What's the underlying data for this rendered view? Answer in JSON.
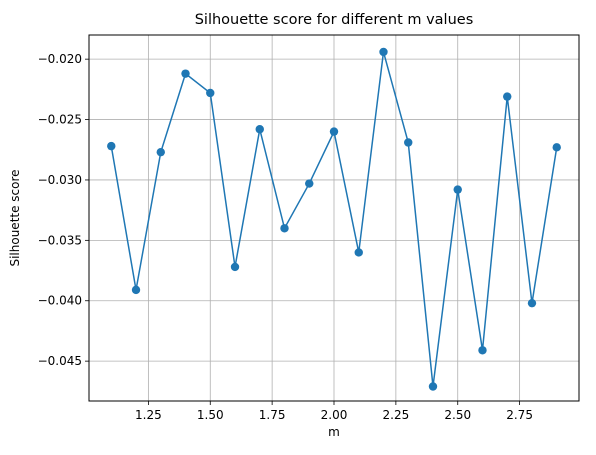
{
  "chart_data": {
    "type": "line",
    "title": "Silhouette score for different m values",
    "xlabel": "m",
    "ylabel": "Silhouette score",
    "x": [
      1.1,
      1.2,
      1.3,
      1.4,
      1.5,
      1.6,
      1.7,
      1.8,
      1.9,
      2.0,
      2.1,
      2.2,
      2.3,
      2.4,
      2.5,
      2.6,
      2.7,
      2.8,
      2.9
    ],
    "series": [
      {
        "values": [
          -0.0272,
          -0.0391,
          -0.0277,
          -0.0212,
          -0.0228,
          -0.0372,
          -0.0258,
          -0.034,
          -0.0303,
          -0.026,
          -0.036,
          -0.0194,
          -0.0269,
          -0.0471,
          -0.0308,
          -0.0441,
          -0.0231,
          -0.0402,
          -0.0273
        ],
        "color": "#1f77b4",
        "marker": "circle"
      }
    ],
    "xlim": [
      1.01,
      2.99
    ],
    "ylim": [
      -0.0483,
      -0.018
    ],
    "xticks": [
      1.25,
      1.5,
      1.75,
      2.0,
      2.25,
      2.5,
      2.75
    ],
    "xtick_labels": [
      "1.25",
      "1.50",
      "1.75",
      "2.00",
      "2.25",
      "2.50",
      "2.75"
    ],
    "yticks": [
      -0.02,
      -0.025,
      -0.03,
      -0.035,
      -0.04,
      -0.045
    ],
    "ytick_labels": [
      "−0.020",
      "−0.025",
      "−0.030",
      "−0.035",
      "−0.040",
      "−0.045"
    ],
    "grid": true
  }
}
